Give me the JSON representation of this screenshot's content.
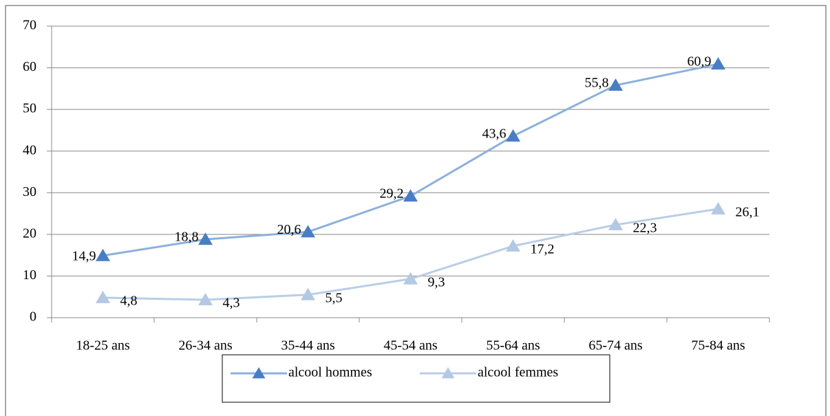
{
  "chart_data": {
    "type": "line",
    "categories": [
      "18-25 ans",
      "26-34 ans",
      "35-44 ans",
      "45-54 ans",
      "55-64 ans",
      "65-74 ans",
      "75-84 ans"
    ],
    "series": [
      {
        "name": "alcool hommes",
        "color": "#8db0dd",
        "marker_color": "#4a7ec3",
        "values": [
          14.9,
          18.8,
          20.6,
          29.2,
          43.6,
          55.8,
          60.9
        ],
        "value_labels": [
          "14,9",
          "18,8",
          "20,6",
          "29,2",
          "43,6",
          "55,8",
          "60,9"
        ]
      },
      {
        "name": "alcool femmes",
        "color": "#b9cde6",
        "marker_color": "#b3c8e3",
        "values": [
          4.8,
          4.3,
          5.5,
          9.3,
          17.2,
          22.3,
          26.1
        ],
        "value_labels": [
          "4,8",
          "4,3",
          "5,5",
          "9,3",
          "17,2",
          "22,3",
          "26,1"
        ]
      }
    ],
    "ylim": [
      0,
      70
    ],
    "yticks": [
      0,
      10,
      20,
      30,
      40,
      50,
      60,
      70
    ],
    "grid": true,
    "legend": "bottom"
  }
}
